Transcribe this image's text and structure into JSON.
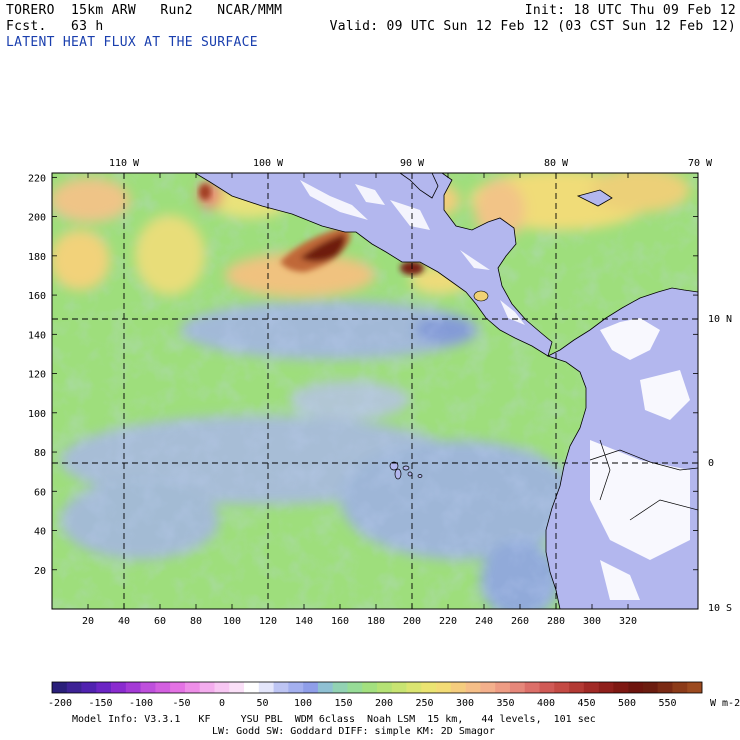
{
  "header": {
    "model_line": "TORERO  15km ARW   Run2   NCAR/MMM",
    "forecast_line": "Fcst.   63 h",
    "init": "Init: 18 UTC Thu 09 Feb 12",
    "valid": "Valid: 09 UTC Sun 12 Feb 12 (03 CST Sun 12 Feb 12)",
    "field_title": "LATENT HEAT FLUX AT THE SURFACE"
  },
  "map": {
    "lon_labels": [
      "110 W",
      "100 W",
      "90 W",
      "80 W",
      "70 W"
    ],
    "lat_labels": [
      "10 N",
      "0",
      "10 S"
    ],
    "y_ticks": [
      "220",
      "200",
      "180",
      "160",
      "140",
      "120",
      "100",
      "80",
      "60",
      "40",
      "20"
    ],
    "x_ticks": [
      "20",
      "40",
      "60",
      "80",
      "100",
      "120",
      "140",
      "160",
      "180",
      "200",
      "220",
      "240",
      "260",
      "280",
      "300",
      "320"
    ],
    "colors": {
      "ocean_base": "#9bdc7a",
      "ocean_cool": "#8fa6e6",
      "ocean_warm": "#e7e07c",
      "hot": "#b2541e",
      "hot_core": "#6e1d10",
      "land": "#b3b7ee",
      "land_white": "#ffffff"
    }
  },
  "colorbar": {
    "labels": [
      "-200",
      "-150",
      "-100",
      "-50",
      "0",
      "50",
      "100",
      "150",
      "200",
      "250",
      "300",
      "350",
      "400",
      "450",
      "500",
      "550"
    ],
    "units": "W m-2",
    "swatches": [
      "#2a1f7a",
      "#3d2295",
      "#5022b0",
      "#6b25c4",
      "#8a2bcf",
      "#a43ad6",
      "#be4fdc",
      "#d35fe0",
      "#e472e4",
      "#ee8ee8",
      "#f4adee",
      "#f8c7f3",
      "#fbe0f8",
      "#ffffff",
      "#e4e6fb",
      "#bdc4f3",
      "#a4b0ef",
      "#8f9ee9",
      "#8fc0d3",
      "#92d2b3",
      "#97dc97",
      "#a3e07f",
      "#b5e275",
      "#c8e472",
      "#dbe571",
      "#ebe472",
      "#f3dc76",
      "#f5cd7e",
      "#f6bf88",
      "#f4b08c",
      "#ee9c84",
      "#e6877a",
      "#dc6f69",
      "#d05a56",
      "#c44a44",
      "#b33a34",
      "#a12a26",
      "#8f1f1b",
      "#7e1812",
      "#6d140d",
      "#6b1c0f",
      "#7a2a14",
      "#8c3b19",
      "#9c4a1f"
    ]
  },
  "footer": {
    "line1": "Model Info: V3.3.1   KF     YSU PBL  WDM 6class  Noah LSM  15 km,   44 levels,  101 sec",
    "line2": "LW: Godd SW: Goddard DIFF: simple KM: 2D Smagor"
  }
}
